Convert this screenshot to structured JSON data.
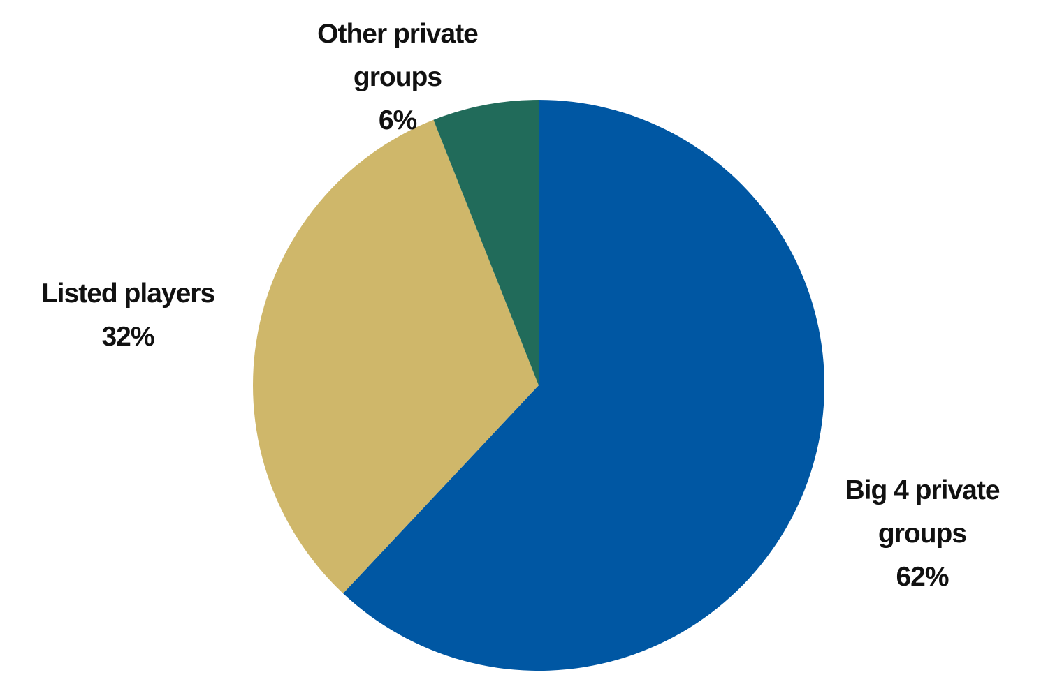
{
  "chart_data": {
    "type": "pie",
    "categories": [
      "Big 4 private groups",
      "Listed players",
      "Other private groups"
    ],
    "values": [
      62,
      32,
      6
    ],
    "value_labels": [
      "62%",
      "32%",
      "6%"
    ],
    "colors": [
      "#0057a3",
      "#cfb76a",
      "#216b5a"
    ]
  }
}
